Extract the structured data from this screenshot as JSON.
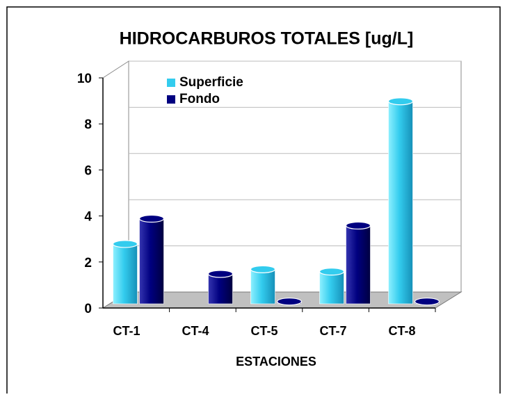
{
  "chart_data": {
    "type": "bar3d",
    "title": "HIDROCARBUROS TOTALES [ug/L]",
    "x_label": "ESTACIONES",
    "categories": [
      "CT-1",
      "CT-4",
      "CT-5",
      "CT-7",
      "CT-8"
    ],
    "series": [
      {
        "name": "Superficie",
        "color": "#33ccee",
        "values": [
          2.6,
          null,
          1.5,
          1.4,
          8.8
        ]
      },
      {
        "name": "Fondo",
        "color": "#000080",
        "values": [
          3.7,
          1.3,
          0.1,
          3.4,
          0.1
        ]
      }
    ],
    "ylim": [
      0,
      10
    ],
    "yticks": [
      0,
      2,
      4,
      6,
      8,
      10
    ],
    "grid": true,
    "legend": "top"
  }
}
